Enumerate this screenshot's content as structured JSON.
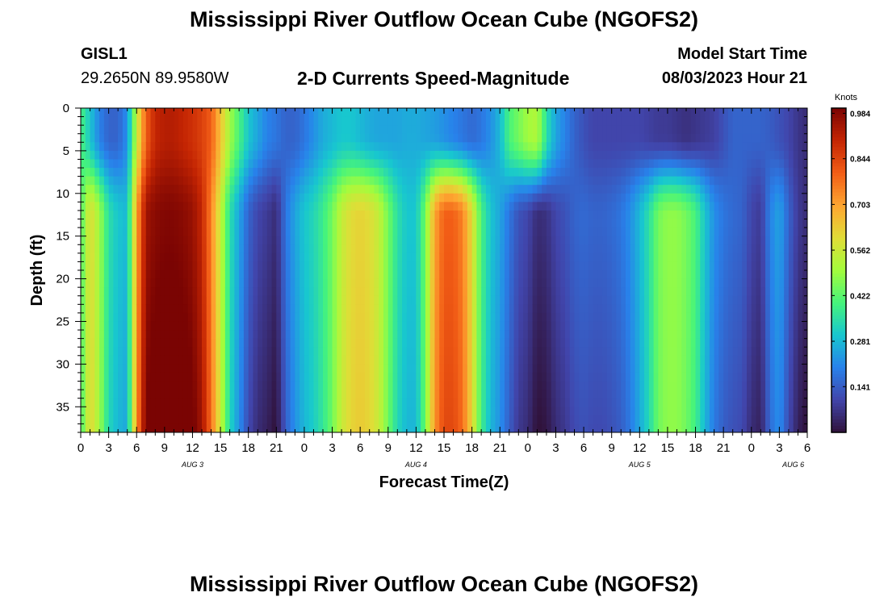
{
  "header": {
    "title": "Mississippi River Outflow Ocean Cube (NGOFS2)",
    "station_id": "GISL1",
    "station_coords": "29.2650N  89.9580W",
    "subtitle": "2-D Currents Speed-Magnitude",
    "model_start_label": "Model Start Time",
    "model_start_value": "08/03/2023 Hour 21"
  },
  "footer": {
    "title": "Mississippi River Outflow Ocean Cube (NGOFS2)"
  },
  "chart_data": {
    "type": "heatmap",
    "title": "2-D Currents Speed-Magnitude",
    "xlabel": "Forecast Time(Z)",
    "ylabel": "Depth (ft)",
    "x_tick_labels": [
      "0",
      "3",
      "6",
      "9",
      "12",
      "15",
      "18",
      "21",
      "0",
      "3",
      "6",
      "9",
      "12",
      "15",
      "18",
      "21",
      "0",
      "3",
      "6",
      "9",
      "12",
      "15",
      "18",
      "21",
      "0",
      "3",
      "6"
    ],
    "x_range_hours": [
      0,
      78
    ],
    "day_labels": [
      {
        "label": "AUG 3",
        "hour": 12
      },
      {
        "label": "AUG 4",
        "hour": 36
      },
      {
        "label": "AUG 5",
        "hour": 60
      },
      {
        "label": "AUG 6",
        "hour": 76.5
      }
    ],
    "y_ticks": [
      0,
      5,
      10,
      15,
      20,
      25,
      30,
      35
    ],
    "y_range_ft": [
      0,
      38
    ],
    "y_reversed": true,
    "colorbar": {
      "title": "Knots",
      "ticks": [
        "0.984",
        "0.844",
        "0.703",
        "0.562",
        "0.422",
        "0.281",
        "0.141"
      ],
      "range": [
        0,
        1.0
      ],
      "colormap": "turbo"
    },
    "time_grid_hours": [
      0,
      1,
      2,
      3,
      4,
      5,
      6,
      7,
      8,
      9,
      10,
      11,
      12,
      13,
      14,
      15,
      16,
      17,
      18,
      19,
      20,
      21,
      22,
      23,
      24,
      25,
      26,
      27,
      28,
      29,
      30,
      31,
      32,
      33,
      34,
      35,
      36,
      37,
      38,
      39,
      40,
      41,
      42,
      43,
      44,
      45,
      46,
      47,
      48,
      49,
      50,
      51,
      52,
      53,
      54,
      55,
      56,
      57,
      58,
      59,
      60,
      61,
      62,
      63,
      64,
      65,
      66,
      67,
      68,
      69,
      70,
      71,
      72,
      73,
      74,
      75,
      76,
      77,
      78
    ],
    "surface_speed_kn": [
      0.4,
      0.3,
      0.2,
      0.15,
      0.15,
      0.22,
      0.55,
      0.8,
      0.9,
      0.92,
      0.92,
      0.9,
      0.88,
      0.85,
      0.8,
      0.65,
      0.5,
      0.4,
      0.3,
      0.25,
      0.2,
      0.18,
      0.15,
      0.15,
      0.18,
      0.22,
      0.26,
      0.28,
      0.3,
      0.3,
      0.28,
      0.26,
      0.25,
      0.25,
      0.25,
      0.26,
      0.26,
      0.25,
      0.24,
      0.22,
      0.2,
      0.18,
      0.16,
      0.18,
      0.22,
      0.28,
      0.4,
      0.45,
      0.5,
      0.52,
      0.35,
      0.25,
      0.2,
      0.15,
      0.12,
      0.1,
      0.1,
      0.1,
      0.1,
      0.1,
      0.1,
      0.09,
      0.08,
      0.08,
      0.07,
      0.06,
      0.07,
      0.08,
      0.09,
      0.12,
      0.15,
      0.15,
      0.15,
      0.15,
      0.14,
      0.12,
      0.1,
      0.07,
      0.05
    ],
    "subsurface_speed_kn": [
      0.4,
      0.6,
      0.5,
      0.35,
      0.3,
      0.28,
      0.7,
      0.95,
      0.98,
      0.99,
      0.99,
      0.98,
      0.96,
      0.9,
      0.75,
      0.55,
      0.35,
      0.25,
      0.15,
      0.1,
      0.08,
      0.05,
      0.18,
      0.25,
      0.3,
      0.33,
      0.38,
      0.45,
      0.55,
      0.6,
      0.62,
      0.6,
      0.55,
      0.45,
      0.35,
      0.3,
      0.3,
      0.45,
      0.7,
      0.8,
      0.8,
      0.75,
      0.6,
      0.4,
      0.3,
      0.25,
      0.18,
      0.12,
      0.1,
      0.05,
      0.06,
      0.1,
      0.12,
      0.15,
      0.16,
      0.15,
      0.15,
      0.16,
      0.18,
      0.22,
      0.28,
      0.35,
      0.45,
      0.48,
      0.48,
      0.45,
      0.4,
      0.3,
      0.22,
      0.18,
      0.16,
      0.15,
      0.1,
      0.08,
      0.2,
      0.25,
      0.15,
      0.08,
      0.05
    ]
  }
}
